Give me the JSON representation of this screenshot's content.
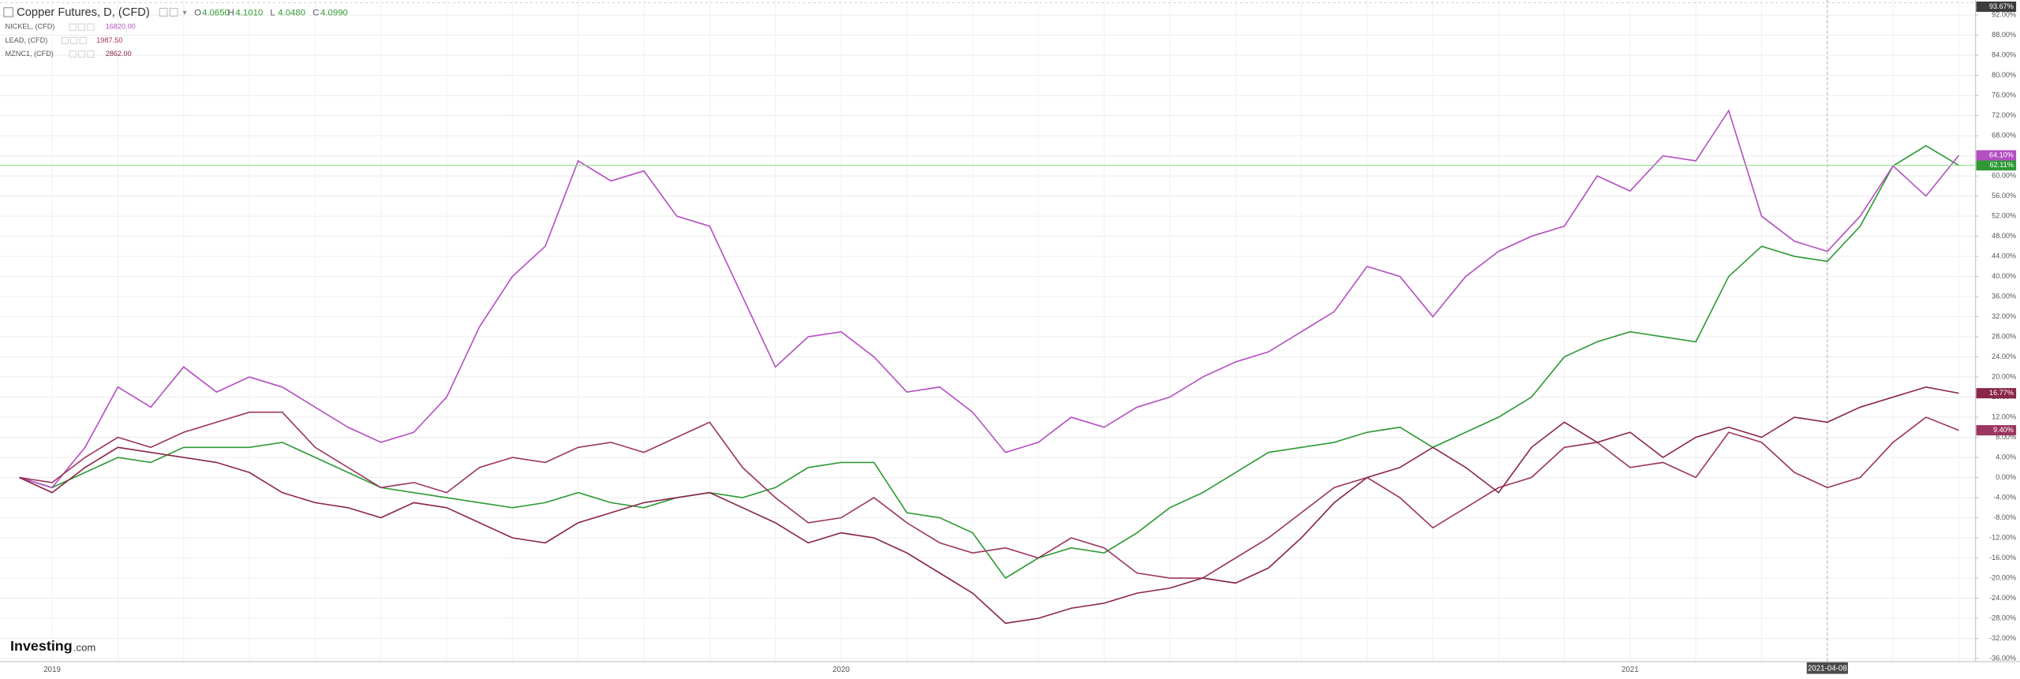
{
  "chart_data": {
    "type": "line",
    "title": "Copper Futures, D, (CFD)",
    "ohlc": [
      {
        "key": "O",
        "value": "4.0650"
      },
      {
        "key": "H",
        "value": "4.1010"
      },
      {
        "key": "L",
        "value": "4.0480"
      },
      {
        "key": "C",
        "value": "4.0990"
      }
    ],
    "logo": {
      "name": "Investing",
      "suffix": ".com"
    },
    "categories": [
      null,
      "2019",
      null,
      null,
      null,
      null,
      null,
      null,
      null,
      null,
      null,
      null,
      null,
      null,
      null,
      null,
      null,
      null,
      null,
      null,
      null,
      null,
      null,
      null,
      null,
      "2020",
      null,
      null,
      null,
      null,
      null,
      null,
      null,
      null,
      null,
      null,
      null,
      null,
      null,
      null,
      null,
      null,
      null,
      null,
      null,
      null,
      null,
      null,
      null,
      "2021",
      null,
      null,
      null,
      null,
      null,
      "2021-04-08",
      null,
      null,
      null,
      null
    ],
    "highlight_category": 55,
    "series": [
      {
        "name": "Copper Futures, D, (CFD)",
        "color": "#2e9a34",
        "price_line_color": "#8fdc8f",
        "last_value_label": "62.11%",
        "values": [
          0,
          -2,
          1,
          4,
          3,
          6,
          6,
          6,
          7,
          4,
          1,
          -2,
          -3,
          -4,
          -5,
          -6,
          -5,
          -3,
          -5,
          -6,
          -4,
          -3,
          -4,
          -2,
          2,
          3,
          3,
          -7,
          -8,
          -11,
          -20,
          -16,
          -14,
          -15,
          -11,
          -6,
          -3,
          1,
          5,
          6,
          7,
          9,
          10,
          6,
          9,
          12,
          16,
          24,
          27,
          29,
          28,
          27,
          40,
          46,
          44,
          43,
          50,
          62,
          66,
          62.11
        ]
      },
      {
        "name": "NICKEL, (CFD)",
        "legend_value": "16820.00",
        "color": "#b450c2",
        "last_value_label": "64.10%",
        "values": [
          0,
          -2,
          6,
          18,
          14,
          22,
          17,
          20,
          18,
          14,
          10,
          7,
          9,
          16,
          30,
          40,
          46,
          63,
          59,
          61,
          52,
          50,
          36,
          22,
          28,
          29,
          24,
          17,
          18,
          13,
          5,
          7,
          12,
          10,
          14,
          16,
          20,
          23,
          25,
          29,
          33,
          42,
          40,
          32,
          40,
          45,
          48,
          50,
          60,
          57,
          64,
          63,
          73,
          52,
          47,
          45,
          52,
          62,
          56,
          64.1
        ]
      },
      {
        "name": "LEAD, (CFD)",
        "legend_value": "1987.50",
        "color": "#9c3560",
        "last_value_label": "9.40%",
        "values": [
          0,
          -1,
          4,
          8,
          6,
          9,
          11,
          13,
          13,
          6,
          2,
          -2,
          -1,
          -3,
          2,
          4,
          3,
          6,
          7,
          5,
          8,
          11,
          2,
          -4,
          -9,
          -8,
          -4,
          -9,
          -13,
          -15,
          -14,
          -16,
          -12,
          -14,
          -19,
          -20,
          -20,
          -16,
          -12,
          -7,
          -2,
          0,
          -4,
          -10,
          -6,
          -2,
          0,
          6,
          7,
          2,
          3,
          0,
          9,
          7,
          1,
          -2,
          0,
          7,
          12,
          9.4
        ]
      },
      {
        "name": "MZNC1, (CFD)",
        "legend_value": "2862.00",
        "color": "#8a2749",
        "last_value_label": "16.77%",
        "values": [
          0,
          -3,
          2,
          6,
          5,
          4,
          3,
          1,
          -3,
          -5,
          -6,
          -8,
          -5,
          -6,
          -9,
          -12,
          -13,
          -9,
          -7,
          -5,
          -4,
          -3,
          -6,
          -9,
          -13,
          -11,
          -12,
          -15,
          -19,
          -23,
          -29,
          -28,
          -26,
          -25,
          -23,
          -22,
          -20,
          -21,
          -18,
          -12,
          -5,
          0,
          2,
          6,
          2,
          -3,
          6,
          11,
          7,
          9,
          4,
          8,
          10,
          8,
          12,
          11,
          14,
          16,
          18,
          16.77
        ]
      }
    ],
    "annotation": {
      "value": 93.67,
      "label": "93.67%"
    },
    "ylim": [
      -36.5,
      95
    ],
    "yticks": [
      {
        "value": 92,
        "label": "92.00%"
      },
      {
        "value": 88,
        "label": "88.00%"
      },
      {
        "value": 84,
        "label": "84.00%"
      },
      {
        "value": 80,
        "label": "80.00%"
      },
      {
        "value": 76,
        "label": "76.00%"
      },
      {
        "value": 72,
        "label": "72.00%"
      },
      {
        "value": 68,
        "label": "68.00%"
      },
      {
        "value": 64,
        "label": "64.00%"
      },
      {
        "value": 60,
        "label": "60.00%"
      },
      {
        "value": 56,
        "label": "56.00%"
      },
      {
        "value": 52,
        "label": "52.00%"
      },
      {
        "value": 48,
        "label": "48.00%"
      },
      {
        "value": 44,
        "label": "44.00%"
      },
      {
        "value": 40,
        "label": "40.00%"
      },
      {
        "value": 36,
        "label": "36.00%"
      },
      {
        "value": 32,
        "label": "32.00%"
      },
      {
        "value": 28,
        "label": "28.00%"
      },
      {
        "value": 24,
        "label": "24.00%"
      },
      {
        "value": 20,
        "label": "20.00%"
      },
      {
        "value": 16,
        "label": "16.00%"
      },
      {
        "value": 12,
        "label": "12.00%"
      },
      {
        "value": 8,
        "label": "8.00%"
      },
      {
        "value": 4,
        "label": "4.00%"
      },
      {
        "value": 0,
        "label": "0.00%"
      },
      {
        "value": -4,
        "label": "-4.00%"
      },
      {
        "value": -8,
        "label": "-8.00%"
      },
      {
        "value": -12,
        "label": "-12.00%"
      },
      {
        "value": -16,
        "label": "-16.00%"
      },
      {
        "value": -20,
        "label": "-20.00%"
      },
      {
        "value": -24,
        "label": "-24.00%"
      },
      {
        "value": -28,
        "label": "-28.00%"
      },
      {
        "value": -32,
        "label": "-32.00%"
      },
      {
        "value": -36,
        "label": "-36.00%"
      }
    ],
    "grid": true
  }
}
